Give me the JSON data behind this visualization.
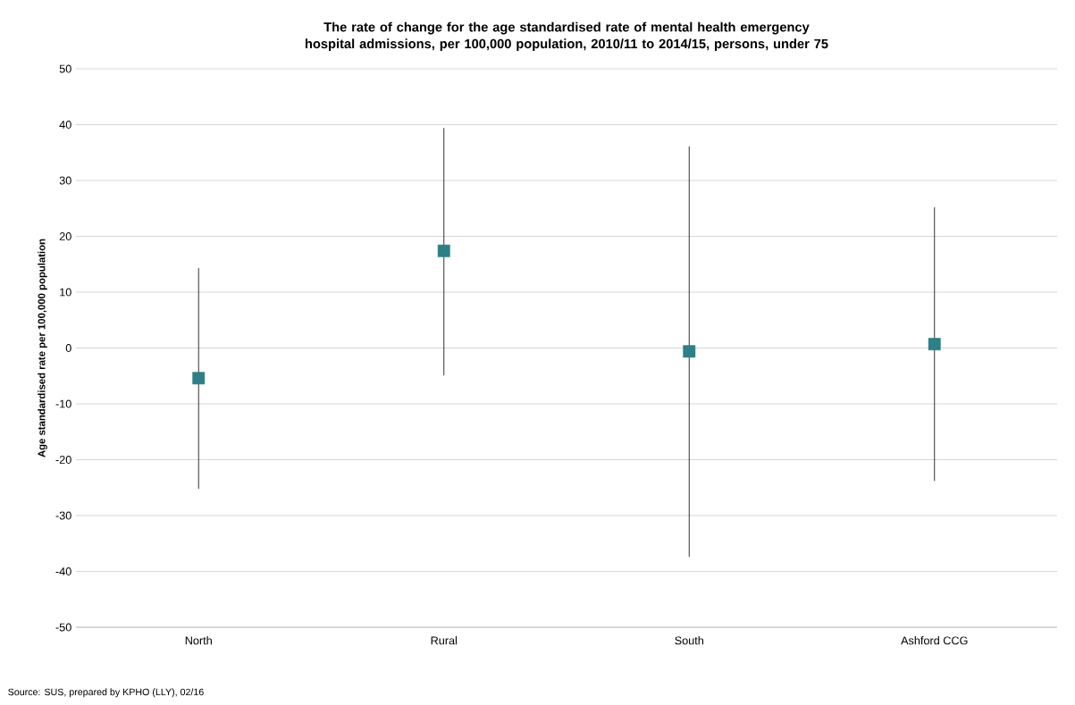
{
  "chart_data": {
    "type": "scatter",
    "title": "The rate of change for the age standardised rate of mental health emergency hospital admissions,  per 100,000 population,  2010/11 to 2014/15, persons, under 75",
    "ylabel": "Age standardised rate per 100,000 population",
    "categories": [
      "North",
      "Rural",
      "South",
      "Ashford CCG"
    ],
    "values": [
      -5.4,
      17.4,
      -0.6,
      0.7
    ],
    "errors": [
      [
        -25.2,
        14.3
      ],
      [
        -4.9,
        39.4
      ],
      [
        -37.4,
        36.1
      ],
      [
        -23.8,
        25.2
      ]
    ],
    "color": "#2e7f86",
    "marker": "square",
    "grid": "y",
    "ylim": [
      -50,
      50
    ],
    "yticks": [
      -50,
      -40,
      -30,
      -20,
      -10,
      0,
      10,
      20,
      30,
      40,
      50
    ],
    "annotations": [
      "Source: SUS, prepared by KPHO (LLY), 02/16"
    ]
  }
}
